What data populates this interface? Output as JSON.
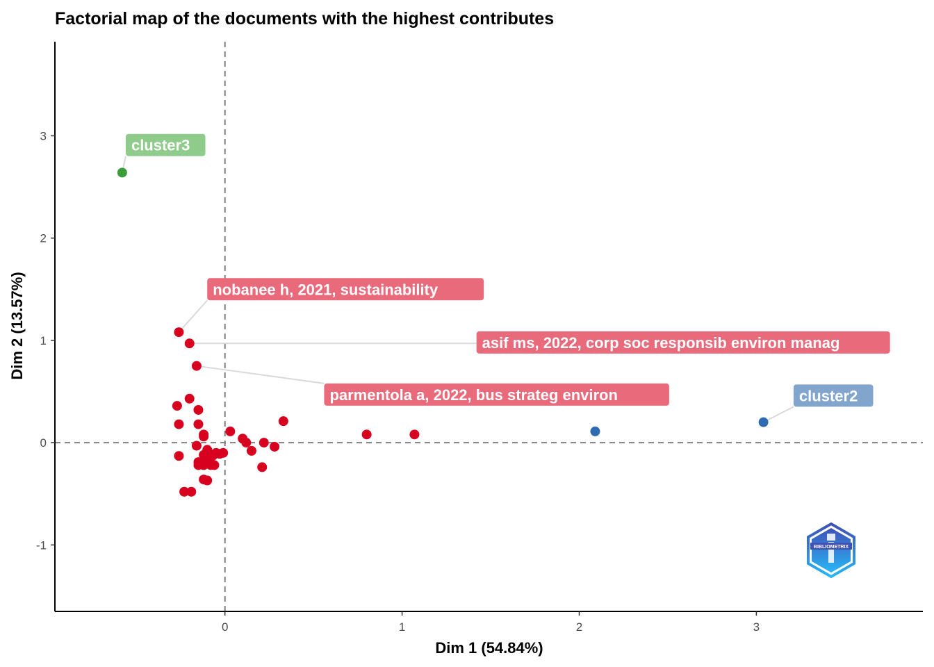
{
  "chart_data": {
    "type": "scatter",
    "title": "Factorial map of the documents with the highest contributes",
    "xlabel": "Dim 1 (54.84%)",
    "ylabel": "Dim 2 (13.57%)",
    "xlim": [
      -0.96,
      3.94
    ],
    "ylim": [
      -1.65,
      3.92
    ],
    "xticks": [
      0,
      1,
      2,
      3
    ],
    "yticks": [
      -1,
      0,
      1,
      2,
      3
    ],
    "xtick_labels": [
      "0",
      "1",
      "2",
      "3"
    ],
    "ytick_labels": [
      "-1",
      "0",
      "1",
      "2",
      "3"
    ],
    "grid": false,
    "reference_lines": {
      "x": 0,
      "y": 0,
      "style": "dashed"
    },
    "colors": {
      "cluster1": "#d7001f",
      "cluster2": "#2f6bb0",
      "cluster3": "#3a9e3a"
    },
    "label_colors": {
      "cluster1": "#e86a7b",
      "cluster2": "#81a5cd",
      "cluster3": "#8fcb8b"
    },
    "series": [
      {
        "cluster": "cluster1",
        "points": [
          [
            -0.26,
            1.08
          ],
          [
            -0.2,
            0.97
          ],
          [
            -0.16,
            0.75
          ],
          [
            -0.2,
            0.43
          ],
          [
            -0.27,
            0.36
          ],
          [
            -0.15,
            0.32
          ],
          [
            -0.26,
            0.18
          ],
          [
            -0.15,
            0.18
          ],
          [
            -0.12,
            0.08
          ],
          [
            -0.12,
            0.06
          ],
          [
            0.03,
            0.11
          ],
          [
            0.33,
            0.21
          ],
          [
            0.1,
            0.04
          ],
          [
            0.12,
            0.0
          ],
          [
            0.22,
            0.0
          ],
          [
            0.28,
            -0.04
          ],
          [
            0.15,
            -0.08
          ],
          [
            -0.16,
            -0.03
          ],
          [
            -0.1,
            -0.07
          ],
          [
            -0.05,
            -0.1
          ],
          [
            -0.03,
            -0.11
          ],
          [
            -0.01,
            -0.1
          ],
          [
            -0.12,
            -0.12
          ],
          [
            -0.07,
            -0.13
          ],
          [
            -0.26,
            -0.13
          ],
          [
            -0.09,
            -0.15
          ],
          [
            -0.15,
            -0.19
          ],
          [
            -0.13,
            -0.2
          ],
          [
            -0.15,
            -0.22
          ],
          [
            -0.12,
            -0.22
          ],
          [
            -0.08,
            -0.22
          ],
          [
            -0.06,
            -0.22
          ],
          [
            0.21,
            -0.24
          ],
          [
            -0.12,
            -0.36
          ],
          [
            -0.1,
            -0.37
          ],
          [
            -0.23,
            -0.48
          ],
          [
            -0.19,
            -0.48
          ],
          [
            0.8,
            0.08
          ],
          [
            1.07,
            0.08
          ]
        ]
      },
      {
        "cluster": "cluster2",
        "points": [
          [
            2.09,
            0.11
          ],
          [
            3.04,
            0.2
          ]
        ]
      },
      {
        "cluster": "cluster3",
        "points": [
          [
            -0.58,
            2.64
          ]
        ]
      }
    ],
    "annotations": [
      {
        "text": "cluster3",
        "cluster": "cluster3",
        "point": [
          -0.58,
          2.64
        ],
        "anchor": [
          -0.56,
          2.91
        ]
      },
      {
        "text": "nobanee h, 2021, sustainability",
        "cluster": "cluster1",
        "point": [
          -0.26,
          1.08
        ],
        "anchor": [
          -0.1,
          1.5
        ]
      },
      {
        "text": "asif ms, 2022, corp soc responsib environ manag",
        "cluster": "cluster1",
        "point": [
          -0.2,
          0.97
        ],
        "anchor": [
          1.42,
          0.98
        ]
      },
      {
        "text": "parmentola a, 2022, bus strateg environ",
        "cluster": "cluster1",
        "point": [
          -0.16,
          0.75
        ],
        "anchor": [
          0.56,
          0.47
        ]
      },
      {
        "text": "cluster2",
        "cluster": "cluster2",
        "point": [
          3.04,
          0.2
        ],
        "anchor": [
          3.21,
          0.46
        ]
      }
    ]
  },
  "logo": {
    "text": "BIBLIOMETRIX",
    "name": "bibliometrix-logo"
  }
}
